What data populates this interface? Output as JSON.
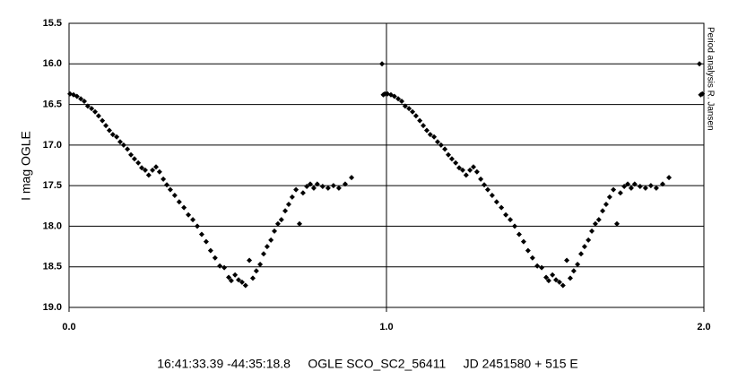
{
  "chart_data": {
    "type": "scatter",
    "ylabel": "I mag OGLE",
    "xlabel": "16:41:33.39 -44:35:18.8     OGLE SCO_SC2_56411     JD 2451580 + 515 E",
    "annotation": "Period analysis R. Jansen",
    "xlim": [
      0,
      2
    ],
    "ylim": [
      19.0,
      15.5
    ],
    "y_inverted": true,
    "xticks": [
      {
        "value": 0,
        "label": "0.0"
      },
      {
        "value": 1,
        "label": "1.0"
      },
      {
        "value": 2,
        "label": "2.0"
      }
    ],
    "yticks": [
      {
        "value": 15.5,
        "label": "15.5"
      },
      {
        "value": 16,
        "label": "16.0"
      },
      {
        "value": 16.5,
        "label": "16.5"
      },
      {
        "value": 17,
        "label": "17.0"
      },
      {
        "value": 17.5,
        "label": "17.5"
      },
      {
        "value": 18,
        "label": "18.0"
      },
      {
        "value": 18.5,
        "label": "18.5"
      },
      {
        "value": 19,
        "label": "19.0"
      }
    ],
    "grid": true,
    "series": [
      {
        "color": "#000000",
        "x": [
          0.003,
          0.014,
          0.025,
          0.037,
          0.048,
          0.059,
          0.071,
          0.082,
          0.093,
          0.105,
          0.116,
          0.127,
          0.138,
          0.15,
          0.161,
          0.172,
          0.184,
          0.195,
          0.206,
          0.218,
          0.229,
          0.24,
          0.251,
          0.263,
          0.274,
          0.285,
          0.297,
          0.308,
          0.319,
          0.333,
          0.347,
          0.362,
          0.376,
          0.39,
          0.404,
          0.418,
          0.432,
          0.446,
          0.46,
          0.475,
          0.489,
          0.503,
          0.511,
          0.523,
          0.534,
          0.545,
          0.556,
          0.568,
          0.579,
          0.59,
          0.602,
          0.613,
          0.624,
          0.636,
          0.647,
          0.658,
          0.669,
          0.681,
          0.692,
          0.703,
          0.715,
          0.726,
          0.737,
          0.749,
          0.76,
          0.771,
          0.782,
          0.799,
          0.816,
          0.833,
          0.85,
          0.87,
          0.89,
          0.986,
          0.99,
          0.995,
          1.003,
          1.014,
          1.025,
          1.037,
          1.048,
          1.059,
          1.071,
          1.082,
          1.093,
          1.105,
          1.116,
          1.127,
          1.138,
          1.15,
          1.161,
          1.172,
          1.184,
          1.195,
          1.206,
          1.218,
          1.229,
          1.24,
          1.251,
          1.263,
          1.274,
          1.285,
          1.297,
          1.308,
          1.319,
          1.333,
          1.347,
          1.362,
          1.376,
          1.39,
          1.404,
          1.418,
          1.432,
          1.446,
          1.46,
          1.475,
          1.489,
          1.503,
          1.511,
          1.523,
          1.534,
          1.545,
          1.556,
          1.568,
          1.579,
          1.59,
          1.602,
          1.613,
          1.624,
          1.636,
          1.647,
          1.658,
          1.669,
          1.681,
          1.692,
          1.703,
          1.715,
          1.726,
          1.737,
          1.749,
          1.76,
          1.771,
          1.782,
          1.799,
          1.816,
          1.833,
          1.85,
          1.87,
          1.89,
          1.986,
          1.99,
          1.995
        ],
        "values": [
          16.37,
          16.38,
          16.4,
          16.43,
          16.46,
          16.52,
          16.55,
          16.59,
          16.64,
          16.7,
          16.76,
          16.82,
          16.87,
          16.9,
          16.96,
          17.0,
          17.05,
          17.12,
          17.17,
          17.22,
          17.28,
          17.31,
          17.37,
          17.31,
          17.27,
          17.33,
          17.42,
          17.49,
          17.55,
          17.62,
          17.7,
          17.77,
          17.86,
          17.92,
          18.0,
          18.1,
          18.19,
          18.3,
          18.39,
          18.49,
          18.51,
          18.63,
          18.67,
          18.6,
          18.66,
          18.69,
          18.73,
          18.42,
          18.64,
          18.55,
          18.47,
          18.34,
          18.25,
          18.17,
          18.06,
          17.97,
          17.92,
          17.81,
          17.73,
          17.64,
          17.55,
          17.97,
          17.59,
          17.51,
          17.48,
          17.53,
          17.48,
          17.51,
          17.53,
          17.5,
          17.53,
          17.48,
          17.4,
          16.0,
          16.38,
          16.37,
          16.37,
          16.38,
          16.4,
          16.43,
          16.46,
          16.52,
          16.55,
          16.59,
          16.64,
          16.7,
          16.76,
          16.82,
          16.87,
          16.9,
          16.96,
          17.0,
          17.05,
          17.12,
          17.17,
          17.22,
          17.28,
          17.31,
          17.37,
          17.31,
          17.27,
          17.33,
          17.42,
          17.49,
          17.55,
          17.62,
          17.7,
          17.77,
          17.86,
          17.92,
          18.0,
          18.1,
          18.19,
          18.3,
          18.39,
          18.49,
          18.51,
          18.63,
          18.67,
          18.6,
          18.66,
          18.69,
          18.73,
          18.42,
          18.64,
          18.55,
          18.47,
          18.34,
          18.25,
          18.17,
          18.06,
          17.97,
          17.92,
          17.81,
          17.73,
          17.64,
          17.55,
          17.97,
          17.59,
          17.51,
          17.48,
          17.53,
          17.48,
          17.51,
          17.53,
          17.5,
          17.53,
          17.48,
          17.4,
          16.0,
          16.38,
          16.37
        ]
      }
    ]
  }
}
